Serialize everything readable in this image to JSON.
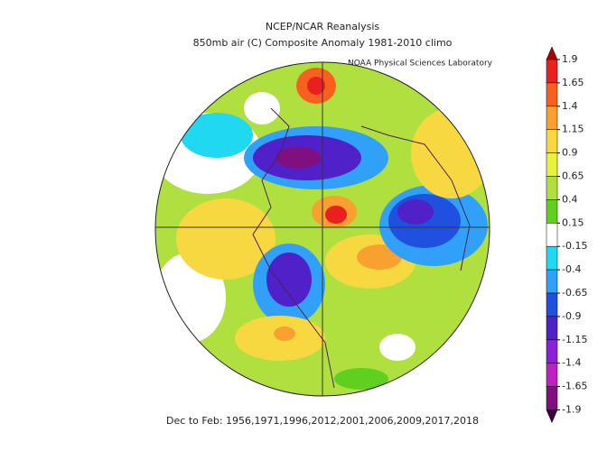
{
  "header": {
    "title": "NCEP/NCAR Reanalysis",
    "subtitle": "850mb air (C) Composite Anomaly 1981-2010 climo",
    "credit": "NOAA Physical Sciences Laboratory"
  },
  "footer": "Dec to Feb: 1956,1971,1996,2012,2001,2006,2009,2017,2018",
  "colorbar": {
    "ticks": [
      1.9,
      1.65,
      1.4,
      1.15,
      0.9,
      0.65,
      0.4,
      0.15,
      -0.15,
      -0.4,
      -0.65,
      -0.9,
      -1.15,
      -1.4,
      -1.65,
      -1.9
    ],
    "colors": [
      "#e82020",
      "#f86020",
      "#f8a030",
      "#f8d840",
      "#e8f040",
      "#b0e040",
      "#60d020",
      "#ffffff",
      "#20d8f0",
      "#30a0f8",
      "#2050e0",
      "#5020c8",
      "#8a20d8",
      "#c020c0",
      "#801080"
    ],
    "over_color": "#b00000",
    "under_color": "#400040"
  }
}
